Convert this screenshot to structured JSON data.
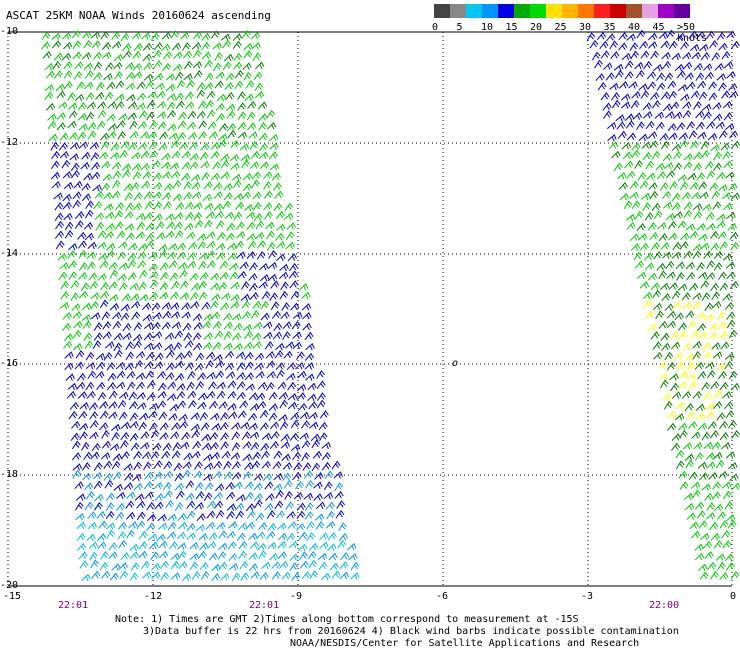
{
  "title": "ASCAT 25KM NOAA Winds 20160624 ascending",
  "legend": {
    "colors": [
      "#444444",
      "#888888",
      "#00c8f0",
      "#0096ff",
      "#0000e6",
      "#00aa00",
      "#00dc00",
      "#ffe100",
      "#ffb400",
      "#ff7800",
      "#ff1e1e",
      "#c80000",
      "#a0522d",
      "#e6a0e6",
      "#a000c8",
      "#6400a0"
    ],
    "labels": [
      "0",
      "5",
      "10",
      "15",
      "20",
      "25",
      "30",
      "35",
      "40",
      "45",
      ">50 knots"
    ]
  },
  "axes": {
    "y_labels": [
      "-10",
      "-12",
      "-14",
      "-16",
      "-18",
      "-20"
    ],
    "x_labels": [
      "-15",
      "-12",
      "-9",
      "-6",
      "-3",
      "0"
    ]
  },
  "time_labels": [
    "22:01",
    "22:01",
    "22:00"
  ],
  "center_marker": "o",
  "notes": [
    "Note: 1) Times are GMT 2)Times along bottom correspond to measurement at -15S",
    "3)Data buffer is 22 hrs from 20160624 4) Black wind barbs indicate possible contamination",
    "NOAA/NESDIS/Center for Satellite Applications and Research"
  ],
  "colors": {
    "grid": "#000000",
    "time_label": "#800080",
    "barb_dark_green": "#008000",
    "barb_green": "#00cc00",
    "barb_blue": "#0000cc",
    "barb_lightblue": "#0099ee",
    "barb_cyan": "#00bbdd",
    "barb_yellow": "#ffff00"
  }
}
